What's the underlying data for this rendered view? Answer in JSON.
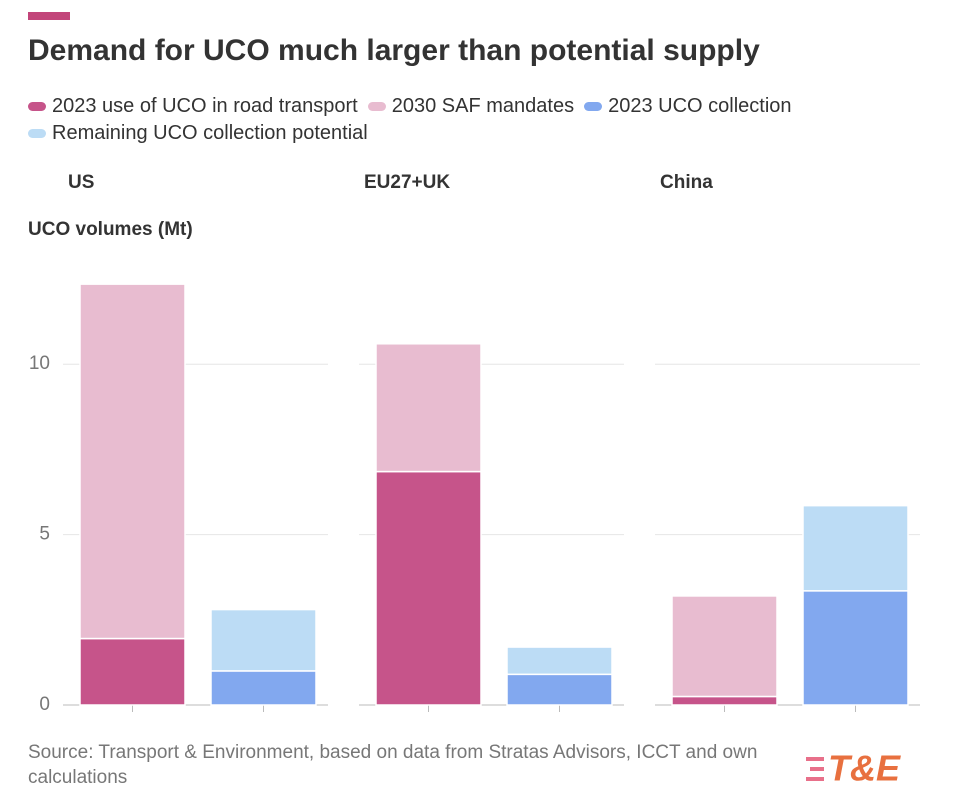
{
  "chart_data": {
    "type": "bar",
    "stacked": true,
    "title": "Demand for UCO much larger than potential supply",
    "y_label": "UCO volumes (Mt)",
    "groups": [
      "US",
      "EU27+UK",
      "China"
    ],
    "categories": [
      null,
      null,
      null,
      null,
      null,
      null
    ],
    "series": [
      {
        "name": "2023 use of UCO in road transport",
        "color": "#c6548a",
        "values": [
          1.95,
          null,
          6.85,
          null,
          0.25,
          null
        ]
      },
      {
        "name": "2030 SAF mandates",
        "color": "#e8bcd0",
        "values": [
          10.4,
          null,
          3.75,
          null,
          2.95,
          null
        ]
      },
      {
        "name": "2023 UCO collection",
        "color": "#82a8ef",
        "values": [
          null,
          1.0,
          null,
          0.9,
          null,
          3.35
        ]
      },
      {
        "name": "Remaining UCO collection potential",
        "color": "#bcdcf5",
        "values": [
          null,
          1.8,
          null,
          0.8,
          null,
          2.5
        ]
      }
    ],
    "ylim": [
      0,
      13
    ],
    "yticks": [
      0,
      5,
      10
    ],
    "grid": true,
    "source": "Source: Transport & Environment, based on data from Stratas Advisors, ICCT and own calculations",
    "logo": "T&E"
  }
}
